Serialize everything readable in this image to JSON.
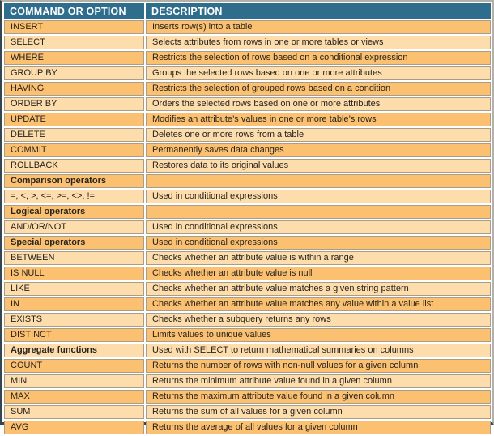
{
  "colors": {
    "header_bg": "#2f6d8c",
    "row_dark": "#fbc170",
    "row_light": "#fdddab",
    "cell_border": "#a79d8a",
    "frame_dark": "#35464f",
    "frame_light": "#b5b1a9",
    "text": "#272320"
  },
  "table": {
    "columns": [
      "COMMAND OR OPTION",
      "DESCRIPTION"
    ],
    "rows": [
      {
        "command": "INSERT",
        "description": "Inserts row(s) into a table",
        "bold": false
      },
      {
        "command": "SELECT",
        "description": "Selects attributes from rows in one or more tables or views",
        "bold": false
      },
      {
        "command": "WHERE",
        "description": "Restricts the selection of rows based on a conditional expression",
        "bold": false
      },
      {
        "command": "GROUP BY",
        "description": "Groups the selected rows based on one or more attributes",
        "bold": false
      },
      {
        "command": "HAVING",
        "description": "Restricts the selection of grouped rows based on a condition",
        "bold": false
      },
      {
        "command": "ORDER BY",
        "description": "Orders the selected rows based on one or more attributes",
        "bold": false
      },
      {
        "command": "UPDATE",
        "description": "Modifies an attribute’s values in one or more table’s rows",
        "bold": false
      },
      {
        "command": "DELETE",
        "description": "Deletes one or more rows from a table",
        "bold": false
      },
      {
        "command": "COMMIT",
        "description": "Permanently saves data changes",
        "bold": false
      },
      {
        "command": "ROLLBACK",
        "description": "Restores data to its original values",
        "bold": false
      },
      {
        "command": "Comparison operators",
        "description": "",
        "bold": true
      },
      {
        "command": "=, <, >, <=, >=, <>, !=",
        "description": "Used in conditional expressions",
        "bold": false
      },
      {
        "command": "Logical operators",
        "description": "",
        "bold": true
      },
      {
        "command": "AND/OR/NOT",
        "description": "Used in conditional expressions",
        "bold": false
      },
      {
        "command": "Special operators",
        "description": "Used in conditional expressions",
        "bold": true
      },
      {
        "command": "BETWEEN",
        "description": "Checks whether an attribute value is within a range",
        "bold": false
      },
      {
        "command": "IS NULL",
        "description": "Checks whether an attribute value is null",
        "bold": false
      },
      {
        "command": "LIKE",
        "description": "Checks whether an attribute value matches a given string pattern",
        "bold": false
      },
      {
        "command": "IN",
        "description": "Checks whether an attribute value matches any value within a value list",
        "bold": false
      },
      {
        "command": "EXISTS",
        "description": "Checks whether a subquery returns any rows",
        "bold": false
      },
      {
        "command": "DISTINCT",
        "description": "Limits values to unique values",
        "bold": false
      },
      {
        "command": "Aggregate functions",
        "description": "Used with SELECT to return mathematical summaries on columns",
        "bold": true
      },
      {
        "command": "COUNT",
        "description": "Returns the number of rows with non-null values for a given column",
        "bold": false
      },
      {
        "command": "MIN",
        "description": "Returns the minimum attribute value found in a given column",
        "bold": false
      },
      {
        "command": "MAX",
        "description": "Returns the maximum attribute value found in a given column",
        "bold": false
      },
      {
        "command": "SUM",
        "description": "Returns the sum of all values for a given column",
        "bold": false
      },
      {
        "command": "AVG",
        "description": "Returns the average of all values for a given column",
        "bold": false
      }
    ]
  }
}
